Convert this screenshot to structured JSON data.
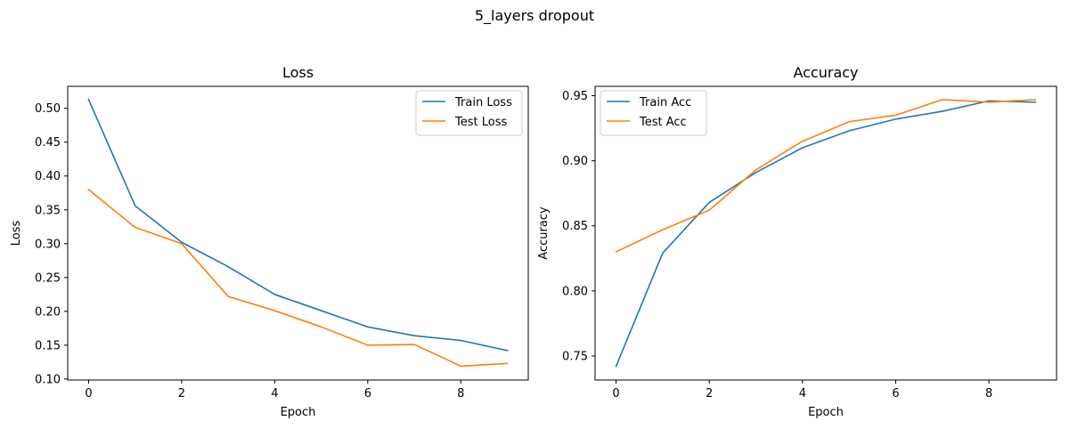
{
  "suptitle": "5_layers dropout",
  "colors": {
    "train": "#1f77b4",
    "test": "#ff7f0e"
  },
  "chart_data": [
    {
      "type": "line",
      "title": "Loss",
      "xlabel": "Epoch",
      "ylabel": "Loss",
      "x": [
        0,
        1,
        2,
        3,
        4,
        5,
        6,
        7,
        8,
        9
      ],
      "xlim": [
        -0.45,
        9.45
      ],
      "ylim": [
        0.0985,
        0.5325
      ],
      "xticks": [
        0,
        2,
        4,
        6,
        8
      ],
      "xtick_labels": [
        "0",
        "2",
        "4",
        "6",
        "8"
      ],
      "yticks": [
        0.1,
        0.15,
        0.2,
        0.25,
        0.3,
        0.35,
        0.4,
        0.45,
        0.5
      ],
      "ytick_labels": [
        "0.10",
        "0.15",
        "0.20",
        "0.25",
        "0.30",
        "0.35",
        "0.40",
        "0.45",
        "0.50"
      ],
      "legend": "upper right",
      "grid": false,
      "series": [
        {
          "name": "Train Loss",
          "color": "#1f77b4",
          "values": [
            0.513,
            0.356,
            0.302,
            0.266,
            0.225,
            0.201,
            0.177,
            0.164,
            0.157,
            0.142
          ]
        },
        {
          "name": "Test Loss",
          "color": "#ff7f0e",
          "values": [
            0.38,
            0.324,
            0.3,
            0.222,
            0.201,
            0.177,
            0.15,
            0.151,
            0.119,
            0.123
          ]
        }
      ]
    },
    {
      "type": "line",
      "title": "Accuracy",
      "xlabel": "Epoch",
      "ylabel": "Accuracy",
      "x": [
        0,
        1,
        2,
        3,
        4,
        5,
        6,
        7,
        8,
        9
      ],
      "xlim": [
        -0.45,
        9.45
      ],
      "ylim": [
        0.7315,
        0.9572
      ],
      "xticks": [
        0,
        2,
        4,
        6,
        8
      ],
      "xtick_labels": [
        "0",
        "2",
        "4",
        "6",
        "8"
      ],
      "yticks": [
        0.75,
        0.8,
        0.85,
        0.9,
        0.95
      ],
      "ytick_labels": [
        "0.75",
        "0.80",
        "0.85",
        "0.90",
        "0.95"
      ],
      "legend": "upper left",
      "grid": false,
      "series": [
        {
          "name": "Train Acc",
          "color": "#1f77b4",
          "values": [
            0.742,
            0.829,
            0.868,
            0.891,
            0.91,
            0.923,
            0.932,
            0.938,
            0.946,
            0.945
          ]
        },
        {
          "name": "Test Acc",
          "color": "#ff7f0e",
          "values": [
            0.83,
            0.847,
            0.862,
            0.893,
            0.915,
            0.93,
            0.935,
            0.947,
            0.945,
            0.947
          ]
        }
      ]
    }
  ]
}
